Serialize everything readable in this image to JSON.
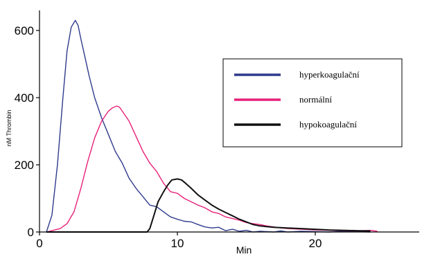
{
  "chart_data": {
    "type": "line",
    "xlabel": "Min",
    "ylabel": "nM Thrombin",
    "xlim": [
      0,
      28
    ],
    "ylim": [
      0,
      650
    ],
    "x_ticks": [
      0,
      10,
      20
    ],
    "y_ticks": [
      0,
      200,
      400,
      600
    ],
    "grid": false,
    "legend_position": "right",
    "series": [
      {
        "name": "hyperkoagulační",
        "color": "#2e3a8c",
        "x": [
          0.5,
          0.9,
          1.3,
          1.7,
          2.0,
          2.3,
          2.6,
          2.8,
          3.0,
          3.3,
          3.6,
          4.0,
          4.5,
          5.0,
          5.5,
          6.0,
          6.5,
          7.0,
          7.5,
          8.0,
          8.5,
          9.0,
          9.5,
          10.0,
          10.5,
          11.0,
          11.5,
          12.0,
          12.5,
          13.0,
          13.5,
          14.0,
          14.5,
          15.0,
          15.5,
          16.0,
          16.5,
          17.0,
          17.5,
          18.0,
          19.0,
          20.0,
          21.0,
          22.0,
          23.0,
          24.0
        ],
        "y": [
          0,
          50,
          200,
          400,
          540,
          610,
          630,
          615,
          575,
          520,
          465,
          400,
          340,
          290,
          240,
          205,
          160,
          130,
          105,
          80,
          75,
          60,
          45,
          38,
          32,
          30,
          22,
          15,
          12,
          14,
          4,
          8,
          2,
          5,
          0,
          2,
          1,
          0,
          3,
          0,
          2,
          1,
          0,
          2,
          1,
          0
        ]
      },
      {
        "name": "normální",
        "color": "#e8207a",
        "x": [
          0.5,
          1.0,
          1.5,
          2.0,
          2.5,
          3.0,
          3.5,
          4.0,
          4.5,
          5.0,
          5.3,
          5.6,
          5.8,
          6.0,
          6.5,
          7.0,
          7.5,
          8.0,
          8.5,
          9.0,
          9.5,
          10.0,
          10.5,
          11.0,
          11.5,
          12.0,
          12.5,
          13.0,
          13.5,
          14.0,
          14.5,
          15.0,
          15.5,
          16.0,
          16.5,
          17.0,
          17.5,
          18.0,
          19.0,
          20.0,
          21.0,
          22.0,
          23.0,
          24.0,
          24.5
        ],
        "y": [
          0,
          5,
          10,
          25,
          60,
          130,
          210,
          280,
          330,
          360,
          370,
          375,
          372,
          360,
          330,
          285,
          240,
          205,
          180,
          145,
          120,
          115,
          100,
          90,
          80,
          72,
          60,
          55,
          45,
          40,
          35,
          28,
          25,
          22,
          18,
          15,
          12,
          10,
          8,
          6,
          5,
          4,
          3,
          5,
          2
        ]
      },
      {
        "name": "hypokoagulační",
        "color": "#111111",
        "x": [
          0.5,
          1.0,
          2.0,
          3.0,
          4.0,
          5.0,
          6.0,
          7.0,
          7.5,
          7.8,
          8.0,
          8.3,
          8.6,
          9.0,
          9.3,
          9.6,
          10.0,
          10.3,
          10.6,
          11.0,
          11.5,
          12.0,
          12.5,
          13.0,
          13.5,
          14.0,
          14.5,
          15.0,
          15.5,
          16.0,
          17.0,
          18.0,
          19.0,
          20.0,
          21.0,
          22.0,
          23.0,
          24.0
        ],
        "y": [
          0,
          0,
          0,
          0,
          0,
          0,
          0,
          0,
          0,
          0,
          10,
          50,
          90,
          120,
          140,
          155,
          158,
          155,
          145,
          130,
          110,
          95,
          80,
          68,
          58,
          48,
          38,
          30,
          22,
          18,
          14,
          12,
          10,
          8,
          6,
          5,
          4,
          3
        ]
      }
    ]
  }
}
